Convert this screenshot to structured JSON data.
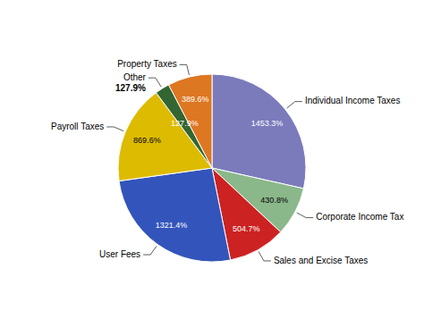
{
  "chart_data": {
    "type": "pie",
    "categories": [
      "Individual Income Taxes",
      "Corporate Income Tax",
      "Sales and Excise Taxes",
      "User Fees",
      "Payroll Taxes",
      "Other",
      "Property Taxes"
    ],
    "values": [
      1453.3,
      430.8,
      504.7,
      1321.4,
      869.6,
      127.9,
      389.6
    ],
    "value_labels": [
      "1453.3%",
      "430.8%",
      "504.7%",
      "1321.4%",
      "869.6%",
      "127.9%",
      "389.6%"
    ],
    "colors": [
      "#7b7bbc",
      "#8ab88a",
      "#cc2222",
      "#3355bb",
      "#ddbb00",
      "#336633",
      "#dd7722"
    ]
  }
}
